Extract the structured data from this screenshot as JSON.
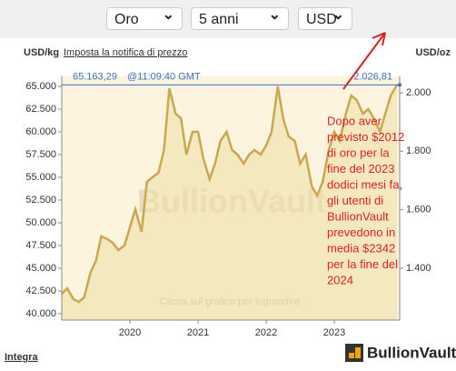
{
  "controls": [
    "Oro",
    "5 anni",
    "USD"
  ],
  "header": {
    "left_unit": "USD/kg",
    "alert_link": "Imposta la notifica di prezzo",
    "right_unit": "USD/oz"
  },
  "chart_data": {
    "type": "line",
    "watermark": "BullionVault",
    "hint": "Clicca sul grafico per ingrandire",
    "current": {
      "value": 65163.29,
      "label": "65.163,29",
      "time": "@11:09:40 GMT",
      "oz_value": 2026.81,
      "oz_label": "2.026,81"
    },
    "annotation": [
      "Dopo aver",
      "previsto $2012",
      "di oro per la",
      "fine del 2023",
      "dodici mesi fa,",
      "gli utenti di",
      "BullionVault",
      "prevedono in",
      "media $2342",
      "per la fine del",
      "2024"
    ],
    "x": [
      2019.0,
      2019.08,
      2019.17,
      2019.25,
      2019.33,
      2019.42,
      2019.5,
      2019.58,
      2019.67,
      2019.75,
      2019.83,
      2019.92,
      2020.0,
      2020.08,
      2020.17,
      2020.25,
      2020.33,
      2020.42,
      2020.5,
      2020.58,
      2020.67,
      2020.75,
      2020.83,
      2020.92,
      2021.0,
      2021.08,
      2021.17,
      2021.25,
      2021.33,
      2021.42,
      2021.5,
      2021.58,
      2021.67,
      2021.75,
      2021.83,
      2021.92,
      2022.0,
      2022.08,
      2022.17,
      2022.25,
      2022.33,
      2022.42,
      2022.5,
      2022.58,
      2022.67,
      2022.75,
      2022.83,
      2022.92,
      2023.0,
      2023.08,
      2023.17,
      2023.25,
      2023.33,
      2023.42,
      2023.5,
      2023.58,
      2023.67,
      2023.75,
      2023.83,
      2023.92
    ],
    "series": [
      {
        "name": "Oro",
        "color": "#c9a84f",
        "axis": "y",
        "values": [
          42200,
          42800,
          41600,
          41300,
          41800,
          44500,
          45800,
          48500,
          48200,
          47800,
          47000,
          47500,
          49500,
          51500,
          49000,
          54500,
          55000,
          55500,
          58000,
          64800,
          62000,
          61500,
          57500,
          60000,
          60000,
          57000,
          54800,
          56500,
          59000,
          60000,
          58000,
          57500,
          56500,
          57500,
          58000,
          57500,
          58500,
          60000,
          65000,
          61500,
          59500,
          59000,
          56500,
          57500,
          54000,
          53000,
          54500,
          58000,
          60000,
          59000,
          62000,
          64000,
          63500,
          62000,
          62500,
          61500,
          60000,
          62000,
          64000,
          65163.29
        ]
      }
    ],
    "xlim": [
      2019.0,
      2023.96
    ],
    "xticks": [
      2020,
      2021,
      2022,
      2023
    ],
    "ylim": [
      39300,
      66100
    ],
    "yticks": [
      {
        "value": 40000,
        "label": "40.000"
      },
      {
        "value": 42500,
        "label": "42.500"
      },
      {
        "value": 45000,
        "label": "45.000"
      },
      {
        "value": 47500,
        "label": "47.500"
      },
      {
        "value": 50000,
        "label": "50.000"
      },
      {
        "value": 52500,
        "label": "52.500"
      },
      {
        "value": 55000,
        "label": "55.000"
      },
      {
        "value": 57500,
        "label": "57.500"
      },
      {
        "value": 60000,
        "label": "60.000"
      },
      {
        "value": 62500,
        "label": "62.500"
      },
      {
        "value": 65000,
        "label": "65.000"
      }
    ],
    "y2lim": [
      1222.4,
      2055.9
    ],
    "y2ticks": [
      {
        "value": 1400,
        "label": "1.400"
      },
      {
        "value": 1600,
        "label": "1.600"
      },
      {
        "value": 1800,
        "label": "1.800"
      },
      {
        "value": 2000,
        "label": "2.000"
      }
    ]
  },
  "footer": {
    "link": "Integra",
    "logo": "BullionVault"
  }
}
